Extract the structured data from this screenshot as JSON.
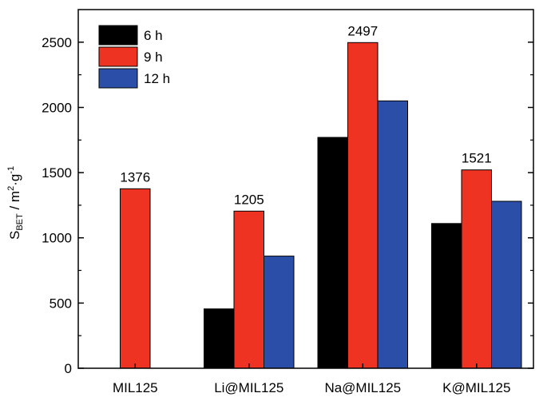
{
  "chart_data": {
    "type": "bar",
    "categories": [
      "MIL125",
      "Li@MIL125",
      "Na@MIL125",
      "K@MIL125"
    ],
    "series": [
      {
        "name": "6 h",
        "color": "#000000",
        "values": [
          null,
          455,
          1770,
          1110
        ]
      },
      {
        "name": "9 h",
        "color": "#ee3322",
        "values": [
          1376,
          1205,
          2497,
          1521
        ]
      },
      {
        "name": "12 h",
        "color": "#2b4fa8",
        "values": [
          null,
          860,
          2050,
          1280
        ]
      }
    ],
    "data_labels": [
      "1376",
      "1205",
      "2497",
      "1521"
    ],
    "ylabel": {
      "main": "S",
      "sub": "BET",
      "mid": " / m",
      "sup1": "2",
      "dot": "·g",
      "sup2": "-1"
    },
    "ylim": [
      0,
      2750
    ],
    "yticks": [
      0,
      500,
      1000,
      1500,
      2000,
      2500
    ],
    "legend_position": "top-left",
    "grid": false
  }
}
